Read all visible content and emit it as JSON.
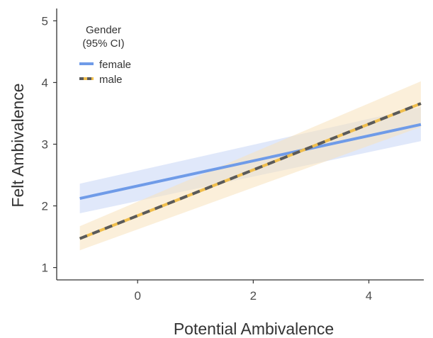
{
  "chart_data": {
    "type": "line",
    "title": "",
    "xlabel": "Potential Ambivalence",
    "ylabel": "Felt Ambivalence",
    "xlim": [
      -1.4,
      4.95
    ],
    "ylim": [
      0.8,
      5.2
    ],
    "x_ticks": [
      0,
      2,
      4
    ],
    "y_ticks": [
      1,
      2,
      3,
      4,
      5
    ],
    "grid": false,
    "legend": {
      "title_line1": "Gender",
      "title_line2": "(95% CI)",
      "placement": "top-left"
    },
    "series": [
      {
        "name": "female",
        "color": "#6f9be8",
        "band_color": "#c6d6f5",
        "line_style": "solid",
        "x": [
          -1,
          4.9
        ],
        "y": [
          2.12,
          3.32
        ],
        "ci_lower": [
          1.88,
          3.05
        ],
        "ci_upper": [
          2.36,
          3.6
        ]
      },
      {
        "name": "male",
        "color": "#f0be4c",
        "dash_color": "#5a5a5a",
        "band_color": "#f8e2bc",
        "line_style": "dashed",
        "x": [
          -1,
          4.9
        ],
        "y": [
          1.47,
          3.66
        ],
        "ci_lower": [
          1.28,
          3.28
        ],
        "ci_upper": [
          1.67,
          4.02
        ]
      }
    ]
  }
}
